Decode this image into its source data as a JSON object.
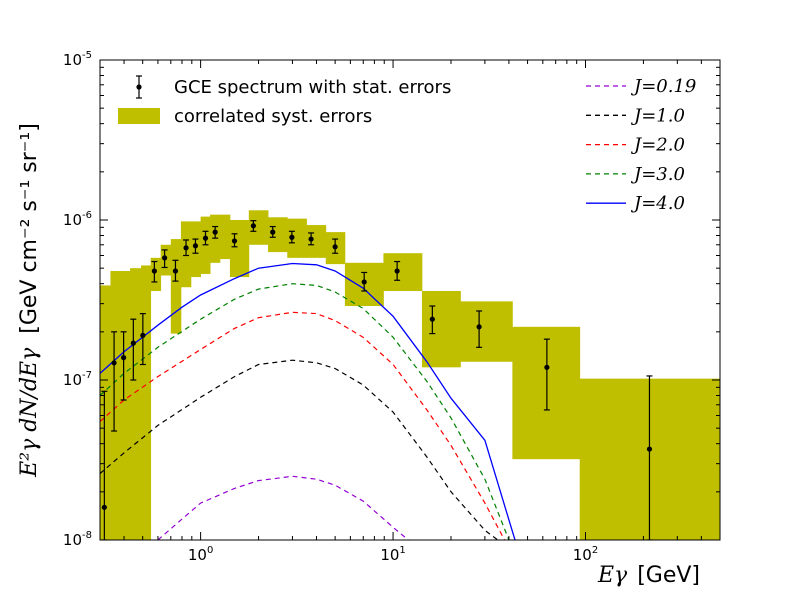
{
  "chart_data": {
    "type": "line",
    "scale": {
      "x": "log",
      "y": "log"
    },
    "xlim": [
      0.3,
      500
    ],
    "ylim": [
      1e-08,
      1e-05
    ],
    "xlabel": {
      "math": "Eγ",
      "unit": "[GeV]"
    },
    "ylabel": {
      "math": "E²γ dN/dEγ",
      "unit": "[GeV cm⁻² s⁻¹ sr⁻¹]"
    },
    "x_ticks": [
      {
        "value": 1,
        "base": "10",
        "exp": "0"
      },
      {
        "value": 10,
        "base": "10",
        "exp": "1"
      },
      {
        "value": 100,
        "base": "10",
        "exp": "2"
      }
    ],
    "y_ticks": [
      {
        "value": 1e-08,
        "base": "10",
        "exp": "-8"
      },
      {
        "value": 1e-07,
        "base": "10",
        "exp": "-7"
      },
      {
        "value": 1e-06,
        "base": "10",
        "exp": "-6"
      },
      {
        "value": 1e-05,
        "base": "10",
        "exp": "-5"
      }
    ],
    "legend_left": [
      {
        "label": "GCE spectrum with stat. errors",
        "kind": "errorbar",
        "color": "#000000"
      },
      {
        "label": "correlated syst. errors",
        "kind": "patch",
        "color": "#bfbf00"
      }
    ],
    "legend_right": [
      {
        "label": "J=0.19",
        "kind": "dashed",
        "color": "#9400d3"
      },
      {
        "label": "J=1.0",
        "kind": "dashed",
        "color": "#000000"
      },
      {
        "label": "J=2.0",
        "kind": "dashed",
        "color": "#ff0000"
      },
      {
        "label": "J=3.0",
        "kind": "dashed",
        "color": "#008000"
      },
      {
        "label": "J=4.0",
        "kind": "solid",
        "color": "#0000ff"
      }
    ],
    "legend_placement": "top (two columns)",
    "syst_band_color": "#bfbf00",
    "syst_band": [
      {
        "xmin": 0.3,
        "xmax": 0.34,
        "ymin": 1e-08,
        "ymax": 3.9e-07
      },
      {
        "xmin": 0.34,
        "xmax": 0.38,
        "ymin": 1e-08,
        "ymax": 4.8e-07
      },
      {
        "xmin": 0.38,
        "xmax": 0.43,
        "ymin": 1e-08,
        "ymax": 4.8e-07
      },
      {
        "xmin": 0.43,
        "xmax": 0.49,
        "ymin": 1e-08,
        "ymax": 5e-07
      },
      {
        "xmin": 0.49,
        "xmax": 0.55,
        "ymin": 1e-08,
        "ymax": 5.2e-07
      },
      {
        "xmin": 0.55,
        "xmax": 0.62,
        "ymin": 3.6e-07,
        "ymax": 5.8e-07
      },
      {
        "xmin": 0.62,
        "xmax": 0.7,
        "ymin": 4.5e-07,
        "ymax": 7e-07
      },
      {
        "xmin": 0.7,
        "xmax": 0.79,
        "ymin": 1.95e-07,
        "ymax": 7.6e-07
      },
      {
        "xmin": 0.79,
        "xmax": 0.89,
        "ymin": 3.8e-07,
        "ymax": 9.8e-07
      },
      {
        "xmin": 0.89,
        "xmax": 1.0,
        "ymin": 4.4e-07,
        "ymax": 9.8e-07
      },
      {
        "xmin": 1.0,
        "xmax": 1.12,
        "ymin": 4.6e-07,
        "ymax": 1.05e-06
      },
      {
        "xmin": 1.12,
        "xmax": 1.26,
        "ymin": 5.4e-07,
        "ymax": 1.08e-06
      },
      {
        "xmin": 1.26,
        "xmax": 1.42,
        "ymin": 5.7e-07,
        "ymax": 1.08e-06
      },
      {
        "xmin": 1.42,
        "xmax": 1.78,
        "ymin": 4.4e-07,
        "ymax": 1e-06
      },
      {
        "xmin": 1.78,
        "xmax": 2.24,
        "ymin": 7e-07,
        "ymax": 1.15e-06
      },
      {
        "xmin": 2.24,
        "xmax": 2.82,
        "ymin": 6.3e-07,
        "ymax": 1.04e-06
      },
      {
        "xmin": 2.82,
        "xmax": 3.55,
        "ymin": 5.8e-07,
        "ymax": 1.02e-06
      },
      {
        "xmin": 3.55,
        "xmax": 4.47,
        "ymin": 5.8e-07,
        "ymax": 9.3e-07
      },
      {
        "xmin": 4.47,
        "xmax": 5.62,
        "ymin": 5.3e-07,
        "ymax": 8.4e-07
      },
      {
        "xmin": 5.62,
        "xmax": 8.91,
        "ymin": 2.9e-07,
        "ymax": 5.4e-07
      },
      {
        "xmin": 8.91,
        "xmax": 14.13,
        "ymin": 3.6e-07,
        "ymax": 6.2e-07
      },
      {
        "xmin": 14.13,
        "xmax": 22.39,
        "ymin": 1.2e-07,
        "ymax": 3.6e-07
      },
      {
        "xmin": 22.39,
        "xmax": 41.69,
        "ymin": 1.3e-07,
        "ymax": 3.1e-07
      },
      {
        "xmin": 41.69,
        "xmax": 93.33,
        "ymin": 3.2e-08,
        "ymax": 2.15e-07
      },
      {
        "xmin": 93.33,
        "xmax": 500,
        "ymin": 1e-08,
        "ymax": 1.02e-07
      }
    ],
    "data_points": [
      {
        "x": 0.316,
        "y": 1.6e-08,
        "ylo": 1e-08,
        "yhi": 8.5e-08
      },
      {
        "x": 0.355,
        "y": 1.28e-07,
        "ylo": 4.8e-08,
        "yhi": 2e-07
      },
      {
        "x": 0.398,
        "y": 1.38e-07,
        "ylo": 7.5e-08,
        "yhi": 2e-07
      },
      {
        "x": 0.447,
        "y": 1.7e-07,
        "ylo": 1e-07,
        "yhi": 2.4e-07
      },
      {
        "x": 0.501,
        "y": 1.9e-07,
        "ylo": 1.25e-07,
        "yhi": 2.6e-07
      },
      {
        "x": 0.575,
        "y": 4.8e-07,
        "ylo": 4.1e-07,
        "yhi": 5.5e-07
      },
      {
        "x": 0.65,
        "y": 5.8e-07,
        "ylo": 5.05e-07,
        "yhi": 6.5e-07
      },
      {
        "x": 0.74,
        "y": 4.8e-07,
        "ylo": 4.15e-07,
        "yhi": 5.6e-07
      },
      {
        "x": 0.84,
        "y": 6.7e-07,
        "ylo": 6e-07,
        "yhi": 7.5e-07
      },
      {
        "x": 0.94,
        "y": 6.9e-07,
        "ylo": 6.2e-07,
        "yhi": 7.6e-07
      },
      {
        "x": 1.06,
        "y": 7.7e-07,
        "ylo": 7e-07,
        "yhi": 8.5e-07
      },
      {
        "x": 1.19,
        "y": 8.4e-07,
        "ylo": 7.7e-07,
        "yhi": 9.1e-07
      },
      {
        "x": 1.5,
        "y": 7.4e-07,
        "ylo": 6.8e-07,
        "yhi": 8.2e-07
      },
      {
        "x": 1.88,
        "y": 9.2e-07,
        "ylo": 8.5e-07,
        "yhi": 9.9e-07
      },
      {
        "x": 2.37,
        "y": 8.4e-07,
        "ylo": 7.8e-07,
        "yhi": 9.1e-07
      },
      {
        "x": 2.98,
        "y": 7.8e-07,
        "ylo": 7.2e-07,
        "yhi": 8.5e-07
      },
      {
        "x": 3.75,
        "y": 7.6e-07,
        "ylo": 7e-07,
        "yhi": 8.3e-07
      },
      {
        "x": 5.0,
        "y": 6.8e-07,
        "ylo": 6.2e-07,
        "yhi": 7.6e-07
      },
      {
        "x": 7.08,
        "y": 4.1e-07,
        "ylo": 3.6e-07,
        "yhi": 4.7e-07
      },
      {
        "x": 10.5,
        "y": 4.8e-07,
        "ylo": 4.2e-07,
        "yhi": 5.5e-07
      },
      {
        "x": 16.0,
        "y": 2.4e-07,
        "ylo": 1.95e-07,
        "yhi": 2.9e-07
      },
      {
        "x": 28.0,
        "y": 2.15e-07,
        "ylo": 1.6e-07,
        "yhi": 2.7e-07
      },
      {
        "x": 63.0,
        "y": 1.2e-07,
        "ylo": 6.5e-08,
        "yhi": 1.8e-07
      },
      {
        "x": 215.0,
        "y": 3.7e-08,
        "ylo": 1e-08,
        "yhi": 1.06e-07
      }
    ],
    "series": [
      {
        "name": "J=0.19",
        "style": "dashed",
        "color": "#9400d3",
        "x": [
          0.6,
          0.8,
          1.0,
          1.5,
          2.0,
          3.0,
          4.0,
          5.0,
          7.0,
          10.0,
          12.0
        ],
        "y": [
          1e-08,
          1.35e-08,
          1.7e-08,
          2.1e-08,
          2.35e-08,
          2.5e-08,
          2.4e-08,
          2.2e-08,
          1.75e-08,
          1.2e-08,
          1e-08
        ]
      },
      {
        "name": "J=1.0",
        "style": "dashed",
        "color": "#000000",
        "x": [
          0.3,
          0.4,
          0.6,
          1.0,
          1.5,
          2.0,
          3.0,
          4.0,
          5.0,
          7.0,
          10.0,
          15.0,
          20.0,
          30.0,
          35.0
        ],
        "y": [
          2.6e-08,
          3.5e-08,
          5.2e-08,
          7.8e-08,
          1.05e-07,
          1.25e-07,
          1.33e-07,
          1.28e-07,
          1.18e-07,
          9.3e-08,
          6.3e-08,
          3.3e-08,
          2e-08,
          1.15e-08,
          1e-08
        ]
      },
      {
        "name": "J=2.0",
        "style": "dashed",
        "color": "#ff0000",
        "x": [
          0.3,
          0.4,
          0.6,
          1.0,
          1.5,
          2.0,
          3.0,
          4.0,
          5.0,
          7.0,
          10.0,
          15.0,
          20.0,
          30.0,
          38.0
        ],
        "y": [
          5.5e-08,
          7.5e-08,
          1.05e-07,
          1.55e-07,
          2.1e-07,
          2.45e-07,
          2.65e-07,
          2.6e-07,
          2.35e-07,
          1.85e-07,
          1.25e-07,
          6.5e-08,
          3.9e-08,
          1.7e-08,
          1e-08
        ]
      },
      {
        "name": "J=3.0",
        "style": "dashed",
        "color": "#008000",
        "x": [
          0.3,
          0.4,
          0.6,
          1.0,
          1.5,
          2.0,
          3.0,
          4.0,
          5.0,
          7.0,
          10.0,
          15.0,
          20.0,
          30.0,
          40.0
        ],
        "y": [
          8e-08,
          1.1e-07,
          1.6e-07,
          2.4e-07,
          3.2e-07,
          3.7e-07,
          4e-07,
          3.9e-07,
          3.55e-07,
          2.8e-07,
          1.85e-07,
          9.8e-08,
          5.8e-08,
          2.4e-08,
          1e-08
        ]
      },
      {
        "name": "J=4.0",
        "style": "solid",
        "color": "#0000ff",
        "x": [
          0.3,
          0.4,
          0.6,
          0.8,
          1.0,
          1.5,
          2.0,
          3.0,
          4.0,
          5.0,
          7.0,
          10.0,
          15.0,
          20.0,
          30.0,
          43.0
        ],
        "y": [
          1.1e-07,
          1.5e-07,
          2.2e-07,
          2.85e-07,
          3.4e-07,
          4.3e-07,
          5e-07,
          5.35e-07,
          5.25e-07,
          4.8e-07,
          3.75e-07,
          2.5e-07,
          1.3e-07,
          7.7e-08,
          4.2e-08,
          1e-08
        ]
      }
    ]
  }
}
